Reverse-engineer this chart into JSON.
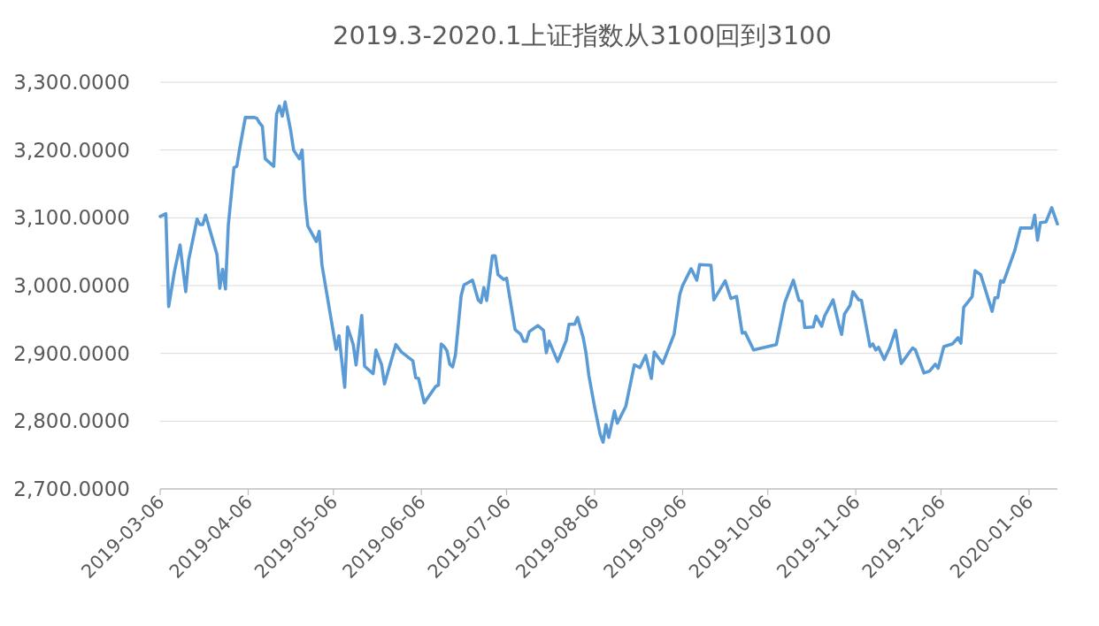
{
  "chart_data": {
    "type": "line",
    "title": "2019.3-2020.1上证指数从3100回到3100",
    "x": [
      "2019-03-06",
      "2019-03-08",
      "2019-03-09",
      "2019-03-11",
      "2019-03-13",
      "2019-03-15",
      "2019-03-16",
      "2019-03-19",
      "2019-03-20",
      "2019-03-21",
      "2019-03-22",
      "2019-03-26",
      "2019-03-27",
      "2019-03-28",
      "2019-03-29",
      "2019-03-30",
      "2019-04-01",
      "2019-04-02",
      "2019-04-03",
      "2019-04-05",
      "2019-04-08",
      "2019-04-09",
      "2019-04-10",
      "2019-04-11",
      "2019-04-12",
      "2019-04-15",
      "2019-04-16",
      "2019-04-17",
      "2019-04-18",
      "2019-04-19",
      "2019-04-21",
      "2019-04-22",
      "2019-04-24",
      "2019-04-25",
      "2019-04-26",
      "2019-04-27",
      "2019-04-30",
      "2019-05-01",
      "2019-05-02",
      "2019-05-07",
      "2019-05-08",
      "2019-05-10",
      "2019-05-11",
      "2019-05-13",
      "2019-05-14",
      "2019-05-16",
      "2019-05-17",
      "2019-05-20",
      "2019-05-21",
      "2019-05-23",
      "2019-05-24",
      "2019-05-28",
      "2019-05-30",
      "2019-06-03",
      "2019-06-04",
      "2019-06-05",
      "2019-06-07",
      "2019-06-11",
      "2019-06-12",
      "2019-06-13",
      "2019-06-14",
      "2019-06-15",
      "2019-06-16",
      "2019-06-17",
      "2019-06-18",
      "2019-06-20",
      "2019-06-21",
      "2019-06-24",
      "2019-06-26",
      "2019-06-27",
      "2019-06-28",
      "2019-06-29",
      "2019-07-01",
      "2019-07-02",
      "2019-07-03",
      "2019-07-05",
      "2019-07-06",
      "2019-07-09",
      "2019-07-11",
      "2019-07-12",
      "2019-07-13",
      "2019-07-14",
      "2019-07-17",
      "2019-07-19",
      "2019-07-20",
      "2019-07-21",
      "2019-07-24",
      "2019-07-25",
      "2019-07-27",
      "2019-07-28",
      "2019-07-30",
      "2019-07-31",
      "2019-08-02",
      "2019-08-03",
      "2019-08-04",
      "2019-08-06",
      "2019-08-08",
      "2019-08-09",
      "2019-08-10",
      "2019-08-11",
      "2019-08-13",
      "2019-08-14",
      "2019-08-17",
      "2019-08-20",
      "2019-08-22",
      "2019-08-24",
      "2019-08-26",
      "2019-08-27",
      "2019-08-30",
      "2019-09-03",
      "2019-09-05",
      "2019-09-06",
      "2019-09-09",
      "2019-09-11",
      "2019-09-12",
      "2019-09-16",
      "2019-09-17",
      "2019-09-21",
      "2019-09-23",
      "2019-09-25",
      "2019-09-27",
      "2019-09-28",
      "2019-10-01",
      "2019-10-09",
      "2019-10-12",
      "2019-10-15",
      "2019-10-17",
      "2019-10-18",
      "2019-10-19",
      "2019-10-22",
      "2019-10-23",
      "2019-10-25",
      "2019-10-26",
      "2019-10-29",
      "2019-10-31",
      "2019-11-01",
      "2019-11-02",
      "2019-11-04",
      "2019-11-05",
      "2019-11-07",
      "2019-11-08",
      "2019-11-11",
      "2019-11-12",
      "2019-11-13",
      "2019-11-14",
      "2019-11-16",
      "2019-11-18",
      "2019-11-20",
      "2019-11-21",
      "2019-11-22",
      "2019-11-26",
      "2019-11-27",
      "2019-11-30",
      "2019-12-02",
      "2019-12-04",
      "2019-12-05",
      "2019-12-07",
      "2019-12-10",
      "2019-12-12",
      "2019-12-13",
      "2019-12-14",
      "2019-12-17",
      "2019-12-18",
      "2019-12-20",
      "2019-12-24",
      "2019-12-25",
      "2019-12-26",
      "2019-12-27",
      "2019-12-28",
      "2020-01-01",
      "2020-01-03",
      "2020-01-07",
      "2020-01-08",
      "2020-01-09",
      "2020-01-10",
      "2020-01-12",
      "2020-01-14",
      "2020-01-16"
    ],
    "series": [
      {
        "color": "#5b9bd5",
        "values": [
          3102,
          3106,
          2969,
          3020,
          3060,
          2991,
          3037,
          3098,
          3090,
          3090,
          3104,
          3046,
          2996,
          3024,
          2995,
          3089,
          3174,
          3176,
          3202,
          3248,
          3248,
          3247,
          3240,
          3235,
          3187,
          3176,
          3253,
          3265,
          3250,
          3271,
          3228,
          3200,
          3187,
          3200,
          3128,
          3088,
          3065,
          3080,
          3030,
          2906,
          2926,
          2850,
          2939,
          2913,
          2883,
          2956,
          2881,
          2870,
          2905,
          2883,
          2855,
          2913,
          2902,
          2889,
          2864,
          2863,
          2827,
          2851,
          2853,
          2914,
          2910,
          2904,
          2884,
          2880,
          2898,
          2985,
          3001,
          3008,
          2979,
          2975,
          2997,
          2978,
          3044,
          3044,
          3016,
          3009,
          3011,
          2935,
          2928,
          2918,
          2918,
          2932,
          2941,
          2934,
          2901,
          2918,
          2888,
          2898,
          2919,
          2943,
          2943,
          2953,
          2923,
          2900,
          2867,
          2821,
          2780,
          2769,
          2795,
          2776,
          2815,
          2797,
          2822,
          2883,
          2879,
          2897,
          2863,
          2902,
          2885,
          2928,
          2987,
          3000,
          3025,
          3008,
          3031,
          3030,
          2979,
          3007,
          2981,
          2984,
          2930,
          2931,
          2905,
          2913,
          2975,
          3008,
          2978,
          2977,
          2938,
          2939,
          2955,
          2940,
          2955,
          2979,
          2943,
          2928,
          2958,
          2971,
          2991,
          2979,
          2978,
          2910,
          2914,
          2905,
          2909,
          2891,
          2909,
          2934,
          2908,
          2885,
          2908,
          2905,
          2871,
          2874,
          2884,
          2878,
          2910,
          2914,
          2923,
          2915,
          2968,
          2984,
          3022,
          3016,
          2962,
          2982,
          2982,
          3007,
          3005,
          3052,
          3085,
          3085,
          3104,
          3067,
          3093,
          3094,
          3115,
          3091
        ]
      }
    ],
    "xlim": [
      "2019-03-06",
      "2020-01-16"
    ],
    "xticks": [
      "2019-03-06",
      "2019-04-06",
      "2019-05-06",
      "2019-06-06",
      "2019-07-06",
      "2019-08-06",
      "2019-09-06",
      "2019-10-06",
      "2019-11-06",
      "2019-12-06",
      "2020-01-06"
    ],
    "ylim": [
      2700,
      3300
    ],
    "yticks": [
      {
        "value": 2700,
        "label": "2,700.0000"
      },
      {
        "value": 2800,
        "label": "2,800.0000"
      },
      {
        "value": 2900,
        "label": "2,900.0000"
      },
      {
        "value": 3000,
        "label": "3,000.0000"
      },
      {
        "value": 3100,
        "label": "3,100.0000"
      },
      {
        "value": 3200,
        "label": "3,200.0000"
      },
      {
        "value": 3300,
        "label": "3,300.0000"
      }
    ],
    "grid": "y",
    "marker": "none",
    "line_style": "solid"
  }
}
